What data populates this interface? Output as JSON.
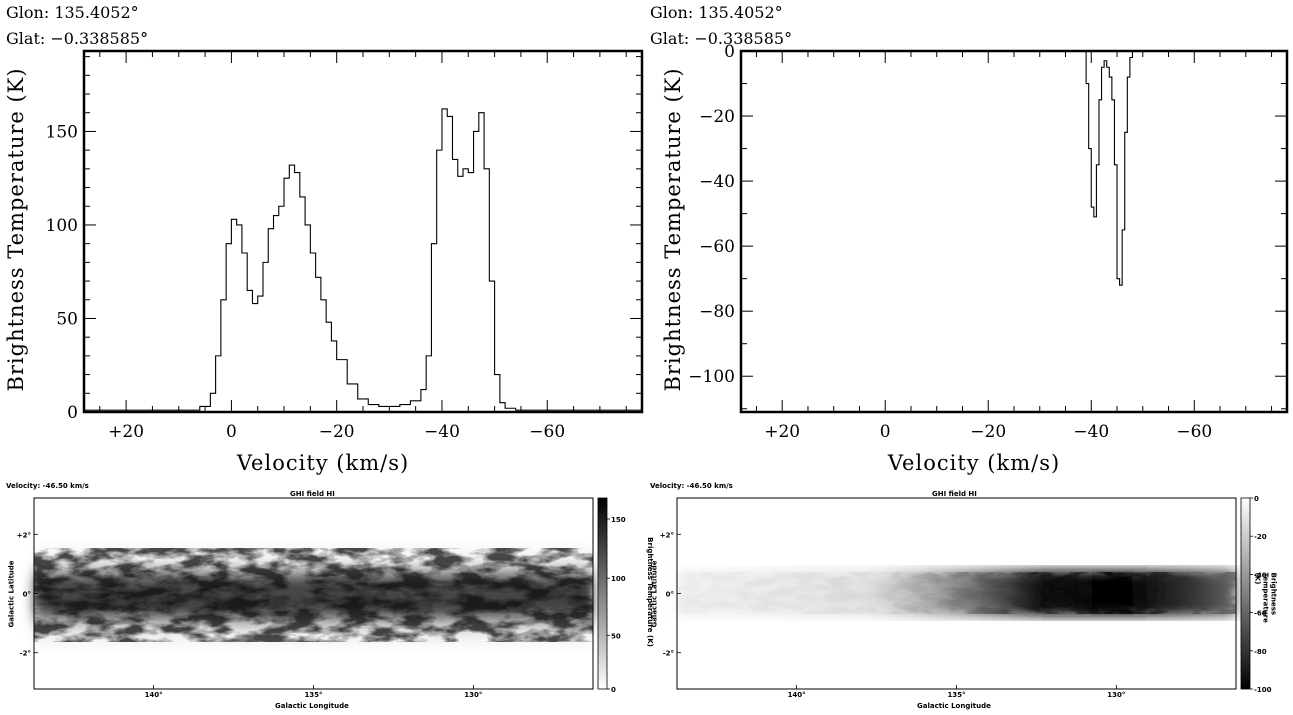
{
  "readout_left": {
    "glon": "Glon: 135.4052°",
    "glat": "Glat: −0.338585°"
  },
  "readout_right": {
    "glon": "Glon: 135.4052°",
    "glat": "Glat: −0.338585°"
  },
  "chart_data": [
    {
      "type": "line",
      "ylabel": "Brightness Temperature (K)",
      "xlabel": "Velocity (km/s)",
      "xlim": [
        28,
        -78
      ],
      "ylim": [
        0,
        193
      ],
      "xticks": [
        20,
        0,
        -20,
        -40,
        -60
      ],
      "xtick_labels": [
        "+20",
        "0",
        "−20",
        "−40",
        "−60"
      ],
      "yticks": [
        0,
        50,
        100,
        150
      ],
      "ytick_labels": [
        "0",
        "50",
        "100",
        "150"
      ],
      "x": [
        28,
        10,
        6,
        4,
        3,
        2,
        1,
        0,
        -1,
        -2,
        -3,
        -4,
        -5,
        -6,
        -7,
        -8,
        -9,
        -10,
        -11,
        -12,
        -13,
        -14,
        -15,
        -16,
        -17,
        -18,
        -19,
        -20,
        -22,
        -24,
        -26,
        -28,
        -30,
        -32,
        -34,
        -36,
        -37,
        -38,
        -39,
        -40,
        -41,
        -42,
        -43,
        -44,
        -45,
        -46,
        -47,
        -48,
        -49,
        -50,
        -51,
        -52,
        -54,
        -78
      ],
      "y": [
        1,
        1,
        3,
        10,
        30,
        60,
        90,
        103,
        100,
        85,
        65,
        58,
        62,
        80,
        98,
        105,
        110,
        125,
        132,
        128,
        115,
        100,
        85,
        72,
        60,
        48,
        38,
        28,
        15,
        7,
        4,
        3,
        3,
        4,
        6,
        12,
        30,
        90,
        140,
        162,
        158,
        135,
        126,
        130,
        128,
        150,
        160,
        130,
        70,
        20,
        5,
        2,
        1,
        1
      ]
    },
    {
      "type": "line",
      "ylabel": "Brightness Temperature (K)",
      "xlabel": "Velocity (km/s)",
      "xlim": [
        28,
        -78
      ],
      "ylim": [
        -111,
        0
      ],
      "xticks": [
        20,
        0,
        -20,
        -40,
        -60
      ],
      "xtick_labels": [
        "+20",
        "0",
        "−20",
        "−40",
        "−60"
      ],
      "yticks": [
        0,
        -20,
        -40,
        -60,
        -80,
        -100
      ],
      "ytick_labels": [
        "0",
        "−20",
        "−40",
        "−60",
        "−80",
        "−100"
      ],
      "x": [
        28,
        -38.5,
        -39,
        -39.5,
        -40,
        -40.5,
        -41,
        -41.5,
        -42,
        -42.5,
        -43,
        -43.5,
        -44,
        -44.5,
        -45,
        -45.5,
        -46,
        -46.5,
        -47,
        -47.5,
        -48,
        -48.5,
        -78
      ],
      "y": [
        0,
        0,
        -10,
        -30,
        -48,
        -51,
        -35,
        -15,
        -5,
        -3,
        -5,
        -8,
        -15,
        -35,
        -70,
        -72,
        -55,
        -25,
        -8,
        -2,
        0,
        0,
        0
      ]
    },
    {
      "type": "heatmap",
      "title": "GHI field HI",
      "velocity_label": "Velocity: -46.50 km/s",
      "xlabel": "Galactic Longitude",
      "ylabel": "Galactic Latitude",
      "xticks": [
        "140°",
        "135°",
        "130°"
      ],
      "yticks": [
        "+2°",
        "0°",
        "-2°"
      ],
      "colorbar_label": "Brightness Temperature (K)",
      "colorbar_ticks": [
        "150",
        "100",
        "50",
        "0"
      ]
    },
    {
      "type": "heatmap",
      "title": "GHI field HI",
      "velocity_label": "Velocity: -46.50 km/s",
      "xlabel": "Galactic Longitude",
      "ylabel": "Galactic Latitude",
      "xticks": [
        "140°",
        "135°",
        "130°"
      ],
      "yticks": [
        "+2°",
        "0°",
        "-2°"
      ],
      "colorbar_label": "Brightness Temperature (K)",
      "colorbar_ticks": [
        "0",
        "-20",
        "-40",
        "-60",
        "-80",
        "-100"
      ]
    }
  ]
}
